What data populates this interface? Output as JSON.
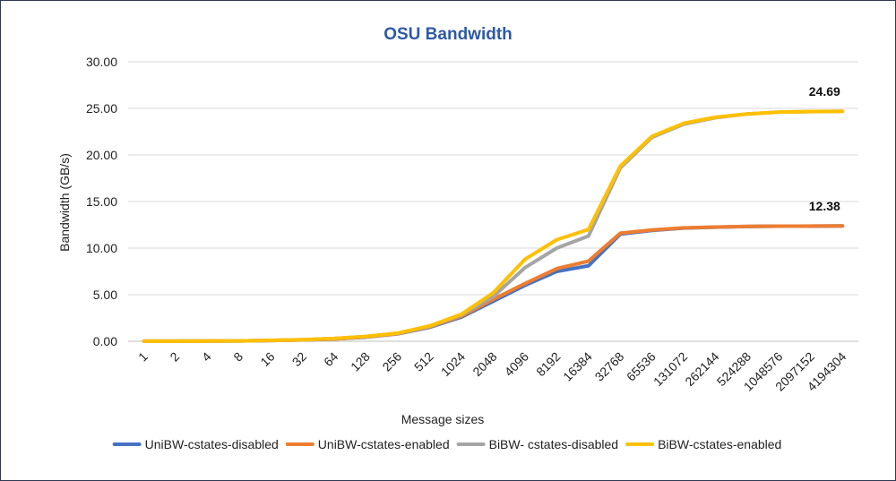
{
  "chart_data": {
    "type": "line",
    "title": "OSU Bandwidth",
    "xlabel": "Message sizes",
    "ylabel": "Bandwidth (GB/s)",
    "ylim": [
      0,
      30
    ],
    "yticks": [
      "0.00",
      "5.00",
      "10.00",
      "15.00",
      "20.00",
      "25.00",
      "30.00"
    ],
    "grid": "horizontal",
    "legend_position": "bottom",
    "categories": [
      "1",
      "2",
      "4",
      "8",
      "16",
      "32",
      "64",
      "128",
      "256",
      "512",
      "1024",
      "2048",
      "4096",
      "8192",
      "16384",
      "32768",
      "65536",
      "131072",
      "262144",
      "524288",
      "1048576",
      "2097152",
      "4194304"
    ],
    "series": [
      {
        "name": "UniBW-cstates-disabled",
        "color": "#4472c4",
        "values": [
          0.01,
          0.01,
          0.02,
          0.04,
          0.08,
          0.15,
          0.25,
          0.45,
          0.8,
          1.5,
          2.6,
          4.3,
          6.0,
          7.5,
          8.1,
          11.5,
          11.9,
          12.15,
          12.25,
          12.32,
          12.35,
          12.36,
          12.38
        ]
      },
      {
        "name": "UniBW-cstates-enabled",
        "color": "#ed7d31",
        "values": [
          0.01,
          0.01,
          0.02,
          0.04,
          0.08,
          0.15,
          0.25,
          0.48,
          0.82,
          1.55,
          2.7,
          4.5,
          6.2,
          7.8,
          8.6,
          11.6,
          11.95,
          12.18,
          12.26,
          12.33,
          12.35,
          12.37,
          12.38
        ]
      },
      {
        "name": "BiBW- cstates-disabled",
        "color": "#a5a5a5",
        "values": [
          0.01,
          0.01,
          0.02,
          0.04,
          0.09,
          0.17,
          0.3,
          0.52,
          0.85,
          1.6,
          2.8,
          4.8,
          7.9,
          10.0,
          11.3,
          18.6,
          21.9,
          23.3,
          24.0,
          24.4,
          24.6,
          24.65,
          24.69
        ]
      },
      {
        "name": "BiBW-cstates-enabled",
        "color": "#ffc000",
        "values": [
          0.01,
          0.01,
          0.02,
          0.04,
          0.09,
          0.17,
          0.3,
          0.52,
          0.88,
          1.65,
          2.9,
          5.2,
          8.8,
          10.9,
          12.0,
          18.8,
          22.0,
          23.4,
          24.05,
          24.4,
          24.6,
          24.66,
          24.69
        ]
      }
    ],
    "annotations": [
      {
        "text": "24.69",
        "series": 3,
        "index": 22
      },
      {
        "text": "12.38",
        "series": 1,
        "index": 22
      }
    ]
  }
}
